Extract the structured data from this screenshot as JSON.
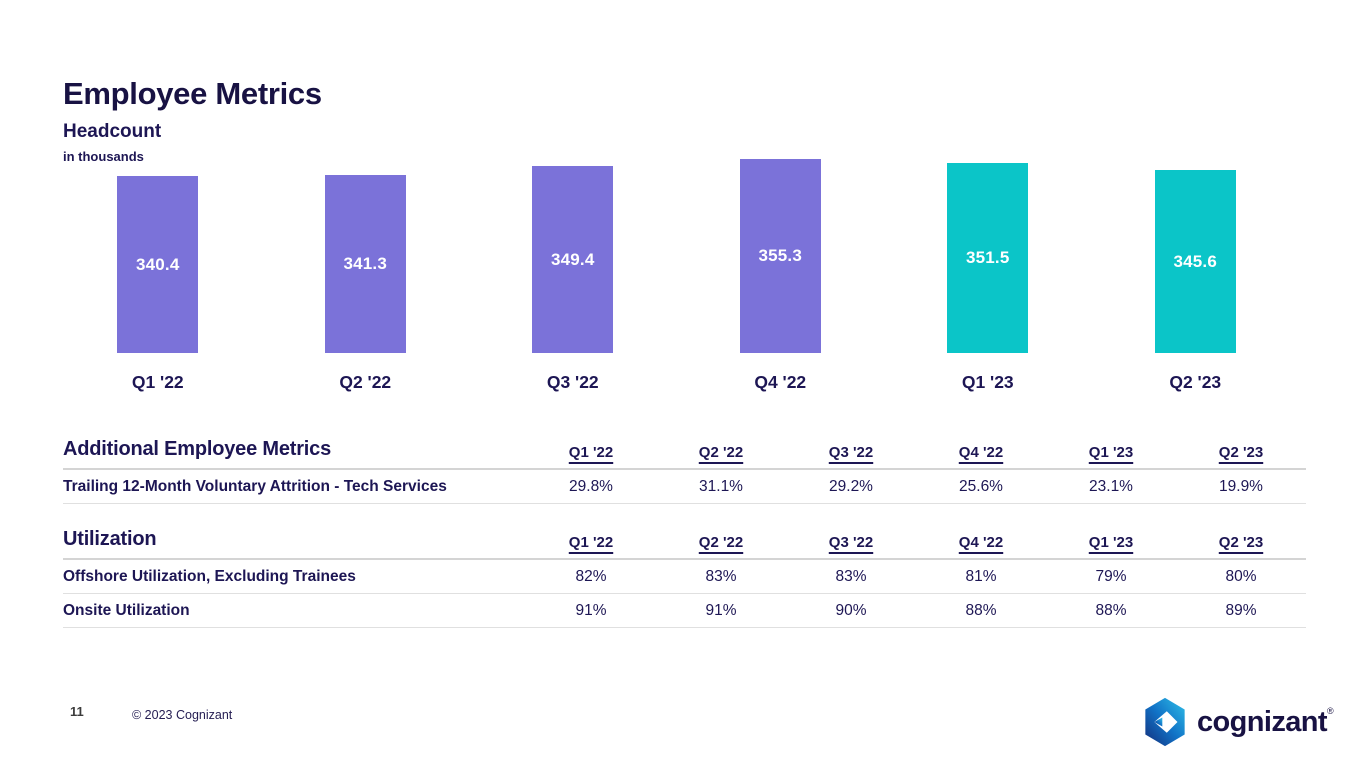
{
  "slide": {
    "title": "Employee Metrics"
  },
  "chart_data": {
    "type": "bar",
    "title": "Headcount",
    "subtitle": "in thousands",
    "categories": [
      "Q1 '22",
      "Q2 '22",
      "Q3 '22",
      "Q4 '22",
      "Q1 '23",
      "Q2 '23"
    ],
    "values": [
      340.4,
      341.3,
      349.4,
      355.3,
      351.5,
      345.6
    ],
    "value_labels": [
      "340.4",
      "341.3",
      "349.4",
      "355.3",
      "351.5",
      "345.6"
    ],
    "bar_colors": [
      "#7b72d9",
      "#7b72d9",
      "#7b72d9",
      "#7b72d9",
      "#0bc5c8",
      "#0bc5c8"
    ],
    "xlabel": "",
    "ylabel": "Headcount in thousands",
    "ylim": [
      0,
      360
    ],
    "grid": false,
    "legend": "none",
    "value_labels_position": "inside-center"
  },
  "tables": [
    {
      "title": "Additional Employee Metrics",
      "columns": [
        "Q1 '22",
        "Q2 '22",
        "Q3 '22",
        "Q4 '22",
        "Q1 '23",
        "Q2 '23"
      ],
      "rows": [
        {
          "label": "Trailing 12-Month Voluntary Attrition - Tech Services",
          "values": [
            "29.8%",
            "31.1%",
            "29.2%",
            "25.6%",
            "23.1%",
            "19.9%"
          ]
        }
      ]
    },
    {
      "title": "Utilization",
      "columns": [
        "Q1 '22",
        "Q2 '22",
        "Q3 '22",
        "Q4 '22",
        "Q1 '23",
        "Q2 '23"
      ],
      "rows": [
        {
          "label": "Offshore Utilization, Excluding Trainees",
          "values": [
            "82%",
            "83%",
            "83%",
            "81%",
            "79%",
            "80%"
          ]
        },
        {
          "label": "Onsite Utilization",
          "values": [
            "91%",
            "91%",
            "90%",
            "88%",
            "88%",
            "89%"
          ]
        }
      ]
    }
  ],
  "footer": {
    "page_number": "11",
    "copyright": "© 2023 Cognizant"
  },
  "logo": {
    "wordmark": "cognizant",
    "trademark": "®"
  },
  "colors": {
    "navy_text": "#1d1654",
    "bar_purple": "#7b72d9",
    "bar_teal": "#0bc5c8",
    "rule_gray": "#d4d4d4",
    "logo_gradient_start": "#142d7a",
    "logo_gradient_mid": "#1173c7",
    "logo_gradient_end": "#2fc0e8"
  }
}
